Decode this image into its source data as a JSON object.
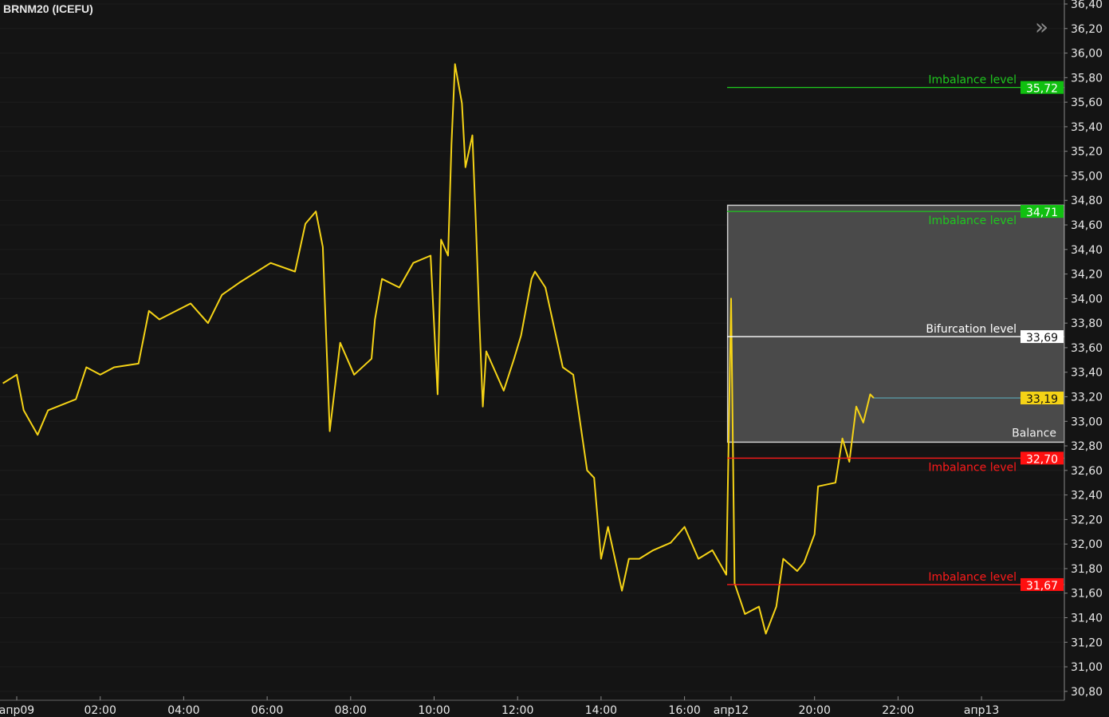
{
  "header": {
    "title": "BRNM20 (ICEFU)",
    "expand_icon": "double-chevron-right-icon"
  },
  "colors": {
    "background": "#141414",
    "price": "#f5d316",
    "green": "#1ec81e",
    "red": "#ff1a1a",
    "white": "#ffffff",
    "current": "#5fb4c4",
    "zone_fill": "#4a4a4a",
    "zone_border": "#d0d0d0"
  },
  "chart_data": {
    "type": "line",
    "title": "BRNM20 (ICEFU)",
    "xlabel": "",
    "ylabel": "",
    "ylim": [
      30.7,
      36.43
    ],
    "grid": true,
    "y_ticks": [
      "36,40",
      "36,20",
      "36,00",
      "35,80",
      "35,60",
      "35,40",
      "35,20",
      "35,00",
      "34,80",
      "34,60",
      "34,40",
      "34,20",
      "34,00",
      "33,80",
      "33,60",
      "33,40",
      "33,20",
      "33,00",
      "32,80",
      "32,60",
      "32,40",
      "32,20",
      "32,00",
      "31,80",
      "31,60",
      "31,40",
      "31,20",
      "31,00",
      "30,80"
    ],
    "x_ticks": [
      {
        "label": "апр09",
        "t": "09 00:00"
      },
      {
        "label": "02:00",
        "t": "09 02:00"
      },
      {
        "label": "04:00",
        "t": "09 04:00"
      },
      {
        "label": "06:00",
        "t": "09 06:00"
      },
      {
        "label": "08:00",
        "t": "09 08:00"
      },
      {
        "label": "10:00",
        "t": "09 10:00"
      },
      {
        "label": "12:00",
        "t": "09 12:00"
      },
      {
        "label": "14:00",
        "t": "09 14:00"
      },
      {
        "label": "16:00",
        "t": "09 16:00"
      },
      {
        "label": "апр12",
        "t": "12 18:00"
      },
      {
        "label": "20:00",
        "t": "12 20:00"
      },
      {
        "label": "22:00",
        "t": "12 22:00"
      },
      {
        "label": "апр13",
        "t": "13 00:00"
      }
    ],
    "series": [
      {
        "values": [
          [
            "08 23:40",
            33.31
          ],
          [
            "09 00:00",
            33.38
          ],
          [
            "09 00:10",
            33.09
          ],
          [
            "09 00:30",
            32.89
          ],
          [
            "09 00:45",
            33.09
          ],
          [
            "09 01:25",
            33.18
          ],
          [
            "09 01:40",
            33.44
          ],
          [
            "09 02:00",
            33.38
          ],
          [
            "09 02:20",
            33.44
          ],
          [
            "09 02:55",
            33.47
          ],
          [
            "09 03:10",
            33.9
          ],
          [
            "09 03:25",
            33.83
          ],
          [
            "09 04:10",
            33.96
          ],
          [
            "09 04:35",
            33.8
          ],
          [
            "09 04:55",
            34.03
          ],
          [
            "09 05:20",
            34.13
          ],
          [
            "09 06:05",
            34.29
          ],
          [
            "09 06:40",
            34.22
          ],
          [
            "09 06:55",
            34.61
          ],
          [
            "09 07:10",
            34.71
          ],
          [
            "09 07:20",
            34.42
          ],
          [
            "09 07:30",
            32.92
          ],
          [
            "09 07:45",
            33.64
          ],
          [
            "09 08:05",
            33.38
          ],
          [
            "09 08:30",
            33.51
          ],
          [
            "09 08:35",
            33.83
          ],
          [
            "09 08:45",
            34.16
          ],
          [
            "09 09:10",
            34.09
          ],
          [
            "09 09:30",
            34.29
          ],
          [
            "09 09:55",
            34.35
          ],
          [
            "09 10:05",
            33.22
          ],
          [
            "09 10:10",
            34.48
          ],
          [
            "09 10:20",
            34.35
          ],
          [
            "09 10:25",
            35.26
          ],
          [
            "09 10:30",
            35.91
          ],
          [
            "09 10:40",
            35.59
          ],
          [
            "09 10:45",
            35.07
          ],
          [
            "09 10:55",
            35.33
          ],
          [
            "09 11:00",
            34.61
          ],
          [
            "09 11:05",
            33.83
          ],
          [
            "09 11:10",
            33.12
          ],
          [
            "09 11:15",
            33.57
          ],
          [
            "09 11:40",
            33.25
          ],
          [
            "09 11:55",
            33.51
          ],
          [
            "09 12:05",
            33.7
          ],
          [
            "09 12:20",
            34.16
          ],
          [
            "09 12:25",
            34.22
          ],
          [
            "09 12:40",
            34.09
          ],
          [
            "09 12:55",
            33.7
          ],
          [
            "09 13:05",
            33.44
          ],
          [
            "09 13:20",
            33.38
          ],
          [
            "09 13:40",
            32.6
          ],
          [
            "09 13:50",
            32.54
          ],
          [
            "09 14:00",
            31.88
          ],
          [
            "09 14:10",
            32.14
          ],
          [
            "09 14:30",
            31.62
          ],
          [
            "09 14:40",
            31.88
          ],
          [
            "09 14:55",
            31.88
          ],
          [
            "09 15:15",
            31.95
          ],
          [
            "09 15:40",
            32.01
          ],
          [
            "09 16:00",
            32.14
          ],
          [
            "09 16:20",
            31.88
          ],
          [
            "09 16:40",
            31.95
          ],
          [
            "09 17:00",
            31.75
          ],
          [
            "12 18:00",
            34.0
          ],
          [
            "12 18:05",
            31.68
          ],
          [
            "12 18:20",
            31.43
          ],
          [
            "12 18:40",
            31.49
          ],
          [
            "12 18:50",
            31.27
          ],
          [
            "12 19:05",
            31.49
          ],
          [
            "12 19:15",
            31.88
          ],
          [
            "12 19:35",
            31.78
          ],
          [
            "12 19:45",
            31.85
          ],
          [
            "12 20:00",
            32.08
          ],
          [
            "12 20:05",
            32.47
          ],
          [
            "12 20:30",
            32.5
          ],
          [
            "12 20:40",
            32.86
          ],
          [
            "12 20:50",
            32.67
          ],
          [
            "12 21:00",
            33.12
          ],
          [
            "12 21:10",
            32.99
          ],
          [
            "12 21:20",
            33.22
          ],
          [
            "12 21:25",
            33.19
          ]
        ]
      }
    ],
    "levels": [
      {
        "name": "Imbalance level",
        "value": 35.72,
        "label": "35,72",
        "color": "green",
        "text_pos": "above"
      },
      {
        "name": "Imbalance level",
        "value": 34.71,
        "label": "34,71",
        "color": "green",
        "text_pos": "below"
      },
      {
        "name": "Bifurcation level",
        "value": 33.69,
        "label": "33,69",
        "color": "white",
        "text_pos": "above"
      },
      {
        "name": "Imbalance level",
        "value": 32.7,
        "label": "32,70",
        "color": "red",
        "text_pos": "below"
      },
      {
        "name": "Imbalance level",
        "value": 31.67,
        "label": "31,67",
        "color": "red",
        "text_pos": "above"
      }
    ],
    "balance_zone": {
      "label": "Balance",
      "top": 34.76,
      "bottom": 32.83,
      "start": "12 17:55"
    },
    "current_price": {
      "value": 33.19,
      "label": "33,19"
    }
  }
}
